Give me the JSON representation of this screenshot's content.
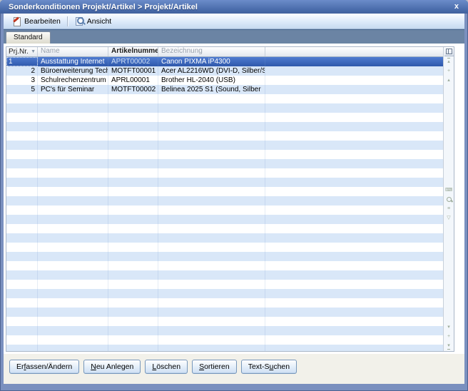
{
  "window": {
    "title": "Sonderkonditionen Projekt/Artikel > Projekt/Artikel",
    "close_glyph": "x"
  },
  "toolbar": {
    "buttons": [
      {
        "label": "Bearbeiten",
        "icon": "edit-icon"
      },
      {
        "label": "Ansicht",
        "icon": "magnifier-document-icon"
      }
    ]
  },
  "tabs": [
    {
      "label": "Standard",
      "active": true
    }
  ],
  "grid": {
    "columns": [
      {
        "label": "Prj.Nr.",
        "sorted": "desc"
      },
      {
        "label": "Name",
        "muted": true
      },
      {
        "label": "Artikelnummer",
        "bold": true
      },
      {
        "label": "Bezeichnung",
        "muted": true
      },
      {
        "label": ""
      }
    ],
    "sort_icon_glyph": "▼",
    "rows": [
      {
        "prj": "1",
        "name": "Ausstattung Internet",
        "artikelnummer": "APRT00002",
        "bezeichnung": "Canon PIXMA iP4300",
        "selected": true
      },
      {
        "prj": "2",
        "name": "Büroerweiterung Tech",
        "artikelnummer": "MOTFT00001",
        "bezeichnung": "Acer AL2216WD (DVI-D, Silber/S"
      },
      {
        "prj": "3",
        "name": "Schulrechenzentrum",
        "artikelnummer": "APRL00001",
        "bezeichnung": "Brother HL-2040 (USB)"
      },
      {
        "prj": "5",
        "name": "PC's für Seminar",
        "artikelnummer": "MOTFT00002",
        "bezeichnung": "Belinea 2025 S1 (Sound, Silber"
      }
    ],
    "empty_rows": 29,
    "rail": {
      "top": [
        {
          "name": "scroll-top-icon",
          "glyph": "▴"
        },
        {
          "name": "add-icon",
          "glyph": "+"
        },
        {
          "name": "step-up-icon",
          "glyph": "▴"
        }
      ],
      "middle": [
        {
          "name": "keyboard-icon",
          "glyph": "⌨"
        },
        {
          "name": "list-icon",
          "glyph": "≡"
        },
        {
          "name": "filter-icon",
          "glyph": "▽"
        }
      ],
      "bottom": [
        {
          "name": "step-down-icon",
          "glyph": "▾"
        },
        {
          "name": "add-row-icon",
          "glyph": "+"
        },
        {
          "name": "scroll-bottom-icon",
          "glyph": "▾"
        }
      ]
    }
  },
  "footer": {
    "buttons": [
      {
        "pre": "Er",
        "key": "f",
        "post": "assen/Ändern"
      },
      {
        "pre": "",
        "key": "N",
        "post": "eu Anlegen"
      },
      {
        "pre": "",
        "key": "L",
        "post": "öschen"
      },
      {
        "pre": "",
        "key": "S",
        "post": "ortieren"
      },
      {
        "pre": "Text-S",
        "key": "u",
        "post": "chen"
      }
    ]
  },
  "colors": {
    "titlebar": "#4a6cab",
    "frame": "#7a90bf",
    "selected_row": "#2e58ab",
    "stripe_row": "#d9e7f8",
    "tabstrip": "#6b84a4",
    "footer_bg": "#f2f1ea"
  }
}
